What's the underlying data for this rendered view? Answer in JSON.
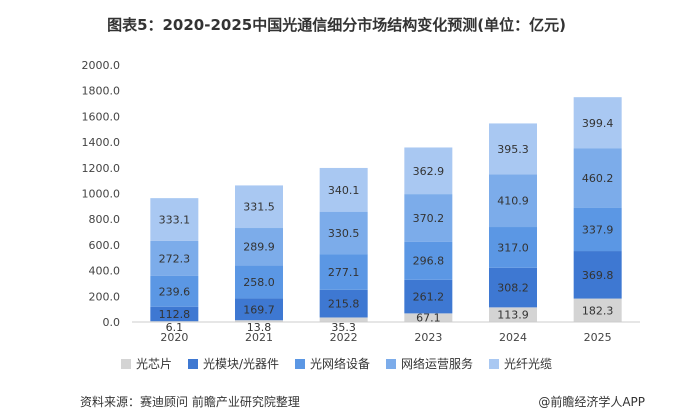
{
  "colors": {
    "光芯片": "#d4d4d4",
    "光模块/光器件": "#3e78d2",
    "光网络设备": "#5b97e4",
    "网络运营服务": "#7cacea",
    "光纤光缆": "#a9c8f2",
    "axis": "#cccccc",
    "text": "#333333"
  },
  "chart_data": {
    "type": "bar",
    "stacked": true,
    "title": "图表5：2020-2025中国光通信细分市场结构变化预测(单位：亿元)",
    "xlabel": "",
    "ylabel": "",
    "ylim": [
      0,
      2000
    ],
    "yticks": [
      "0.0",
      "200.0",
      "400.0",
      "600.0",
      "800.0",
      "1000.0",
      "1200.0",
      "1400.0",
      "1600.0",
      "1800.0",
      "2000.0"
    ],
    "categories": [
      "2020",
      "2021",
      "2022",
      "2023",
      "2024",
      "2025"
    ],
    "series": [
      {
        "name": "光芯片",
        "values": [
          6.1,
          13.8,
          35.3,
          67.1,
          113.9,
          182.3
        ]
      },
      {
        "name": "光模块/光器件",
        "values": [
          112.8,
          169.7,
          215.8,
          261.2,
          308.2,
          369.8
        ]
      },
      {
        "name": "光网络设备",
        "values": [
          239.6,
          258.0,
          277.1,
          296.8,
          317.0,
          337.9
        ]
      },
      {
        "name": "网络运营服务",
        "values": [
          272.3,
          289.9,
          330.5,
          370.2,
          410.9,
          460.2
        ]
      },
      {
        "name": "光纤光缆",
        "values": [
          333.1,
          331.5,
          340.1,
          362.9,
          395.3,
          399.4
        ]
      }
    ],
    "legend_position": "bottom"
  },
  "footer": {
    "source": "资料来源：赛迪顾问 前瞻产业研究院整理",
    "brand": "@前瞻经济学人APP"
  }
}
